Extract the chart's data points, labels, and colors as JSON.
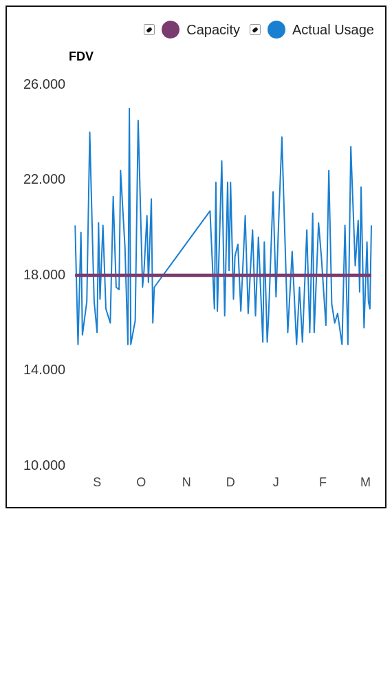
{
  "chart_data": {
    "type": "line",
    "title": "FDV",
    "legend": "top right",
    "marker": "none",
    "ylim": [
      10000,
      26000
    ],
    "yticks": [
      {
        "value": 10000,
        "label": "10.000"
      },
      {
        "value": 14000,
        "label": "14.000"
      },
      {
        "value": 18000,
        "label": "18.000"
      },
      {
        "value": 22000,
        "label": "22.000"
      },
      {
        "value": 26000,
        "label": "26.000"
      }
    ],
    "categories": [
      null,
      null,
      null,
      null,
      null,
      null,
      null,
      null,
      null,
      null,
      null,
      null,
      null,
      null,
      null,
      "S",
      null,
      null,
      null,
      null,
      null,
      null,
      null,
      null,
      null,
      null,
      null,
      null,
      null,
      null,
      null,
      null,
      null,
      null,
      null,
      null,
      null,
      null,
      null,
      null,
      null,
      null,
      null,
      null,
      null,
      "O",
      null,
      null,
      null,
      null,
      null,
      null,
      null,
      null,
      null,
      null,
      null,
      null,
      null,
      null,
      null,
      null,
      null,
      null,
      null,
      null,
      null,
      null,
      null,
      null,
      null,
      null,
      null,
      null,
      null,
      null,
      "N",
      null,
      null,
      null,
      null,
      null,
      null,
      null,
      null,
      null,
      null,
      null,
      null,
      null,
      null,
      null,
      null,
      null,
      null,
      null,
      null,
      null,
      null,
      null,
      null,
      null,
      null,
      null,
      null,
      null,
      "D",
      null,
      null,
      null,
      null,
      null,
      null,
      null,
      null,
      null,
      null,
      null,
      null,
      null,
      null,
      null,
      null,
      null,
      null,
      null,
      null,
      null,
      null,
      null,
      null,
      null,
      null,
      null,
      null,
      null,
      null,
      "J",
      null,
      null,
      null,
      null,
      null,
      null,
      null,
      null,
      null,
      null,
      null,
      null,
      null,
      null,
      null,
      null,
      null,
      null,
      null,
      null,
      null,
      null,
      null,
      null,
      null,
      null,
      null,
      null,
      null,
      null,
      null,
      "F",
      null,
      null,
      null,
      null,
      null,
      null,
      null,
      null,
      null,
      null,
      null,
      null,
      null,
      null,
      null,
      null,
      null,
      null,
      null,
      null,
      null,
      null,
      null,
      null,
      null,
      null,
      null,
      null,
      "M",
      null,
      null,
      null,
      null
    ],
    "series": [
      {
        "name": "Capacity",
        "color": "#7a3b6e",
        "values": [
          18000,
          null,
          null,
          null,
          null,
          null,
          null,
          null,
          null,
          null,
          null,
          null,
          null,
          null,
          null,
          null,
          null,
          null,
          null,
          null,
          null,
          null,
          null,
          null,
          null,
          null,
          null,
          null,
          null,
          null,
          null,
          null,
          null,
          null,
          null,
          null,
          null,
          null,
          null,
          null,
          null,
          null,
          null,
          null,
          null,
          null,
          null,
          null,
          null,
          null,
          null,
          null,
          null,
          null,
          null,
          null,
          null,
          null,
          null,
          null,
          null,
          null,
          null,
          null,
          null,
          null,
          null,
          null,
          null,
          null,
          null,
          null,
          null,
          null,
          null,
          null,
          null,
          null,
          null,
          null,
          null,
          null,
          null,
          null,
          null,
          null,
          null,
          null,
          null,
          null,
          null,
          null,
          null,
          null,
          null,
          null,
          null,
          null,
          null,
          null,
          null,
          null,
          null,
          null,
          null,
          null,
          null,
          null,
          null,
          null,
          null,
          null,
          null,
          null,
          null,
          null,
          null,
          null,
          null,
          null,
          null,
          null,
          null,
          null,
          null,
          null,
          null,
          null,
          null,
          null,
          null,
          null,
          null,
          null,
          null,
          null,
          null,
          null,
          null,
          null,
          null,
          null,
          null,
          null,
          null,
          null,
          null,
          null,
          null,
          null,
          null,
          null,
          null,
          null,
          null,
          null,
          null,
          null,
          null,
          null,
          null,
          null,
          null,
          null,
          null,
          null,
          null,
          null,
          null,
          null,
          null,
          null,
          null,
          null,
          null,
          null,
          null,
          null,
          null,
          null,
          null,
          null,
          null,
          null,
          null,
          null,
          null,
          null,
          null,
          null,
          null,
          null,
          null,
          null,
          null,
          null,
          null,
          null,
          null,
          null,
          null,
          null,
          18000
        ]
      },
      {
        "name": "Actual Usage",
        "color": "#1a7fd0",
        "values": [
          20100,
          null,
          15100,
          null,
          19800,
          15500,
          null,
          null,
          16900,
          null,
          24000,
          null,
          19200,
          16900,
          null,
          15600,
          20200,
          17000,
          null,
          20100,
          null,
          16600,
          null,
          null,
          16000,
          null,
          21300,
          null,
          17500,
          null,
          17400,
          22400,
          null,
          null,
          19200,
          null,
          15100,
          25000,
          15100,
          null,
          null,
          16100,
          null,
          24500,
          null,
          null,
          17500,
          18200,
          null,
          20500,
          17700,
          null,
          21200,
          16000,
          17500,
          null,
          null,
          null,
          null,
          null,
          null,
          null,
          null,
          null,
          null,
          null,
          null,
          null,
          null,
          null,
          null,
          null,
          null,
          null,
          null,
          null,
          null,
          null,
          null,
          null,
          null,
          null,
          null,
          null,
          null,
          null,
          null,
          null,
          null,
          null,
          null,
          null,
          20700,
          null,
          null,
          16600,
          21900,
          16500,
          null,
          null,
          22800,
          null,
          16300,
          null,
          21900,
          18200,
          21900,
          null,
          17000,
          18800,
          null,
          19300,
          null,
          16500,
          null,
          null,
          20500,
          null,
          16400,
          null,
          null,
          19900,
          null,
          16300,
          null,
          19600,
          null,
          null,
          15200,
          19400,
          null,
          15200,
          16400,
          null,
          null,
          21500,
          null,
          17100,
          null,
          20600,
          null,
          23800,
          null,
          null,
          null,
          15600,
          null,
          null,
          19000,
          null,
          null,
          15100,
          null,
          17500,
          null,
          15200,
          null,
          null,
          19900,
          null,
          15600,
          null,
          20600,
          15600,
          null,
          null,
          20200,
          null,
          18700,
          null,
          null,
          15900,
          null,
          22400,
          null,
          16800,
          null,
          16000,
          null,
          16400,
          null,
          null,
          15100,
          null,
          20100,
          null,
          15100,
          null,
          23400,
          null,
          null,
          18400,
          null,
          20300,
          17300,
          21700,
          null,
          15800,
          null,
          19400,
          16900,
          16600,
          20100
        ]
      }
    ]
  }
}
